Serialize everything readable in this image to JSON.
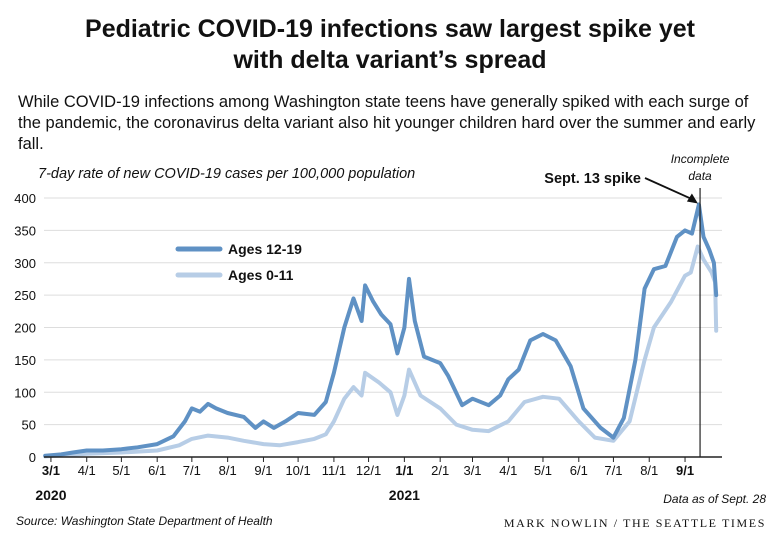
{
  "header": {
    "title_line1": "Pediatric COVID-19 infections saw largest spike yet",
    "title_line2": "with delta variant’s spread",
    "subtitle": "While COVID-19 infections among Washington state teens have generally spiked with each surge of the pandemic, the coronavirus delta variant also hit younger children hard over the summer and early fall."
  },
  "footer": {
    "source": "Source: Washington State Department of Health",
    "credit": "MARK NOWLIN / THE SEATTLE TIMES",
    "data_as_of": "Data as of Sept. 28"
  },
  "colors": {
    "teen": "#5f91c4",
    "child": "#b7cde6",
    "axis": "#222222",
    "grid": "#dddddd"
  },
  "chart_data": {
    "type": "line",
    "ylabel": "7-day rate of new COVID-19 cases per 100,000 population",
    "ylim": [
      0,
      400
    ],
    "yticks": [
      0,
      50,
      100,
      150,
      200,
      250,
      300,
      350,
      400
    ],
    "xticks": [
      "3/1",
      "4/1",
      "5/1",
      "6/1",
      "7/1",
      "8/1",
      "9/1",
      "10/1",
      "11/1",
      "12/1",
      "1/1",
      "2/1",
      "3/1",
      "4/1",
      "5/1",
      "6/1",
      "7/1",
      "8/1",
      "9/1"
    ],
    "year_labels": [
      {
        "label": "2020",
        "at": "2020-03-01"
      },
      {
        "label": "2021",
        "at": "2021-01-01"
      }
    ],
    "legend": {
      "position": "upper-left",
      "entries": [
        "Ages 12-19",
        "Ages 0-11"
      ]
    },
    "annotations": {
      "spike": {
        "label": "Sept. 13 spike",
        "date": "2021-09-13"
      },
      "incomplete": {
        "label_line1": "Incomplete",
        "label_line2": "data",
        "date": "2021-09-14"
      }
    },
    "series": [
      {
        "name": "Ages 12-19",
        "color_key": "teen",
        "points": [
          [
            "2020-02-25",
            2
          ],
          [
            "2020-03-10",
            4
          ],
          [
            "2020-03-20",
            7
          ],
          [
            "2020-04-01",
            10
          ],
          [
            "2020-04-15",
            10
          ],
          [
            "2020-05-01",
            12
          ],
          [
            "2020-05-15",
            15
          ],
          [
            "2020-06-01",
            20
          ],
          [
            "2020-06-15",
            32
          ],
          [
            "2020-06-25",
            55
          ],
          [
            "2020-07-01",
            75
          ],
          [
            "2020-07-08",
            70
          ],
          [
            "2020-07-15",
            82
          ],
          [
            "2020-07-22",
            75
          ],
          [
            "2020-08-01",
            68
          ],
          [
            "2020-08-15",
            62
          ],
          [
            "2020-08-25",
            45
          ],
          [
            "2020-09-01",
            55
          ],
          [
            "2020-09-10",
            45
          ],
          [
            "2020-09-20",
            55
          ],
          [
            "2020-10-01",
            68
          ],
          [
            "2020-10-15",
            65
          ],
          [
            "2020-10-25",
            85
          ],
          [
            "2020-11-01",
            130
          ],
          [
            "2020-11-10",
            200
          ],
          [
            "2020-11-18",
            245
          ],
          [
            "2020-11-25",
            210
          ],
          [
            "2020-11-28",
            265
          ],
          [
            "2020-12-05",
            240
          ],
          [
            "2020-12-12",
            220
          ],
          [
            "2020-12-20",
            205
          ],
          [
            "2020-12-26",
            160
          ],
          [
            "2021-01-01",
            200
          ],
          [
            "2021-01-05",
            275
          ],
          [
            "2021-01-10",
            210
          ],
          [
            "2021-01-18",
            155
          ],
          [
            "2021-02-01",
            145
          ],
          [
            "2021-02-08",
            125
          ],
          [
            "2021-02-20",
            80
          ],
          [
            "2021-03-01",
            90
          ],
          [
            "2021-03-15",
            80
          ],
          [
            "2021-03-25",
            95
          ],
          [
            "2021-04-01",
            120
          ],
          [
            "2021-04-10",
            135
          ],
          [
            "2021-04-20",
            180
          ],
          [
            "2021-05-01",
            190
          ],
          [
            "2021-05-12",
            180
          ],
          [
            "2021-05-25",
            140
          ],
          [
            "2021-06-05",
            75
          ],
          [
            "2021-06-20",
            45
          ],
          [
            "2021-07-01",
            30
          ],
          [
            "2021-07-10",
            60
          ],
          [
            "2021-07-20",
            150
          ],
          [
            "2021-07-28",
            260
          ],
          [
            "2021-08-05",
            290
          ],
          [
            "2021-08-15",
            295
          ],
          [
            "2021-08-25",
            340
          ],
          [
            "2021-09-01",
            350
          ],
          [
            "2021-09-07",
            345
          ],
          [
            "2021-09-13",
            390
          ],
          [
            "2021-09-17",
            340
          ],
          [
            "2021-09-22",
            320
          ],
          [
            "2021-09-26",
            300
          ],
          [
            "2021-09-28",
            250
          ]
        ]
      },
      {
        "name": "Ages 0-11",
        "color_key": "child",
        "points": [
          [
            "2020-02-25",
            1
          ],
          [
            "2020-04-01",
            5
          ],
          [
            "2020-05-01",
            7
          ],
          [
            "2020-06-01",
            10
          ],
          [
            "2020-06-20",
            18
          ],
          [
            "2020-07-01",
            28
          ],
          [
            "2020-07-15",
            33
          ],
          [
            "2020-08-01",
            30
          ],
          [
            "2020-08-15",
            25
          ],
          [
            "2020-09-01",
            20
          ],
          [
            "2020-09-15",
            18
          ],
          [
            "2020-10-01",
            23
          ],
          [
            "2020-10-15",
            28
          ],
          [
            "2020-10-25",
            35
          ],
          [
            "2020-11-01",
            55
          ],
          [
            "2020-11-10",
            90
          ],
          [
            "2020-11-18",
            108
          ],
          [
            "2020-11-25",
            95
          ],
          [
            "2020-11-28",
            130
          ],
          [
            "2020-12-10",
            115
          ],
          [
            "2020-12-20",
            100
          ],
          [
            "2020-12-26",
            65
          ],
          [
            "2021-01-01",
            95
          ],
          [
            "2021-01-05",
            135
          ],
          [
            "2021-01-15",
            95
          ],
          [
            "2021-02-01",
            75
          ],
          [
            "2021-02-15",
            50
          ],
          [
            "2021-03-01",
            42
          ],
          [
            "2021-03-15",
            40
          ],
          [
            "2021-04-01",
            55
          ],
          [
            "2021-04-15",
            85
          ],
          [
            "2021-05-01",
            93
          ],
          [
            "2021-05-15",
            90
          ],
          [
            "2021-06-01",
            55
          ],
          [
            "2021-06-15",
            30
          ],
          [
            "2021-07-01",
            25
          ],
          [
            "2021-07-15",
            55
          ],
          [
            "2021-07-28",
            150
          ],
          [
            "2021-08-05",
            200
          ],
          [
            "2021-08-20",
            240
          ],
          [
            "2021-09-01",
            280
          ],
          [
            "2021-09-06",
            285
          ],
          [
            "2021-09-12",
            325
          ],
          [
            "2021-09-17",
            305
          ],
          [
            "2021-09-24",
            285
          ],
          [
            "2021-09-27",
            270
          ],
          [
            "2021-09-28",
            195
          ]
        ]
      }
    ]
  }
}
